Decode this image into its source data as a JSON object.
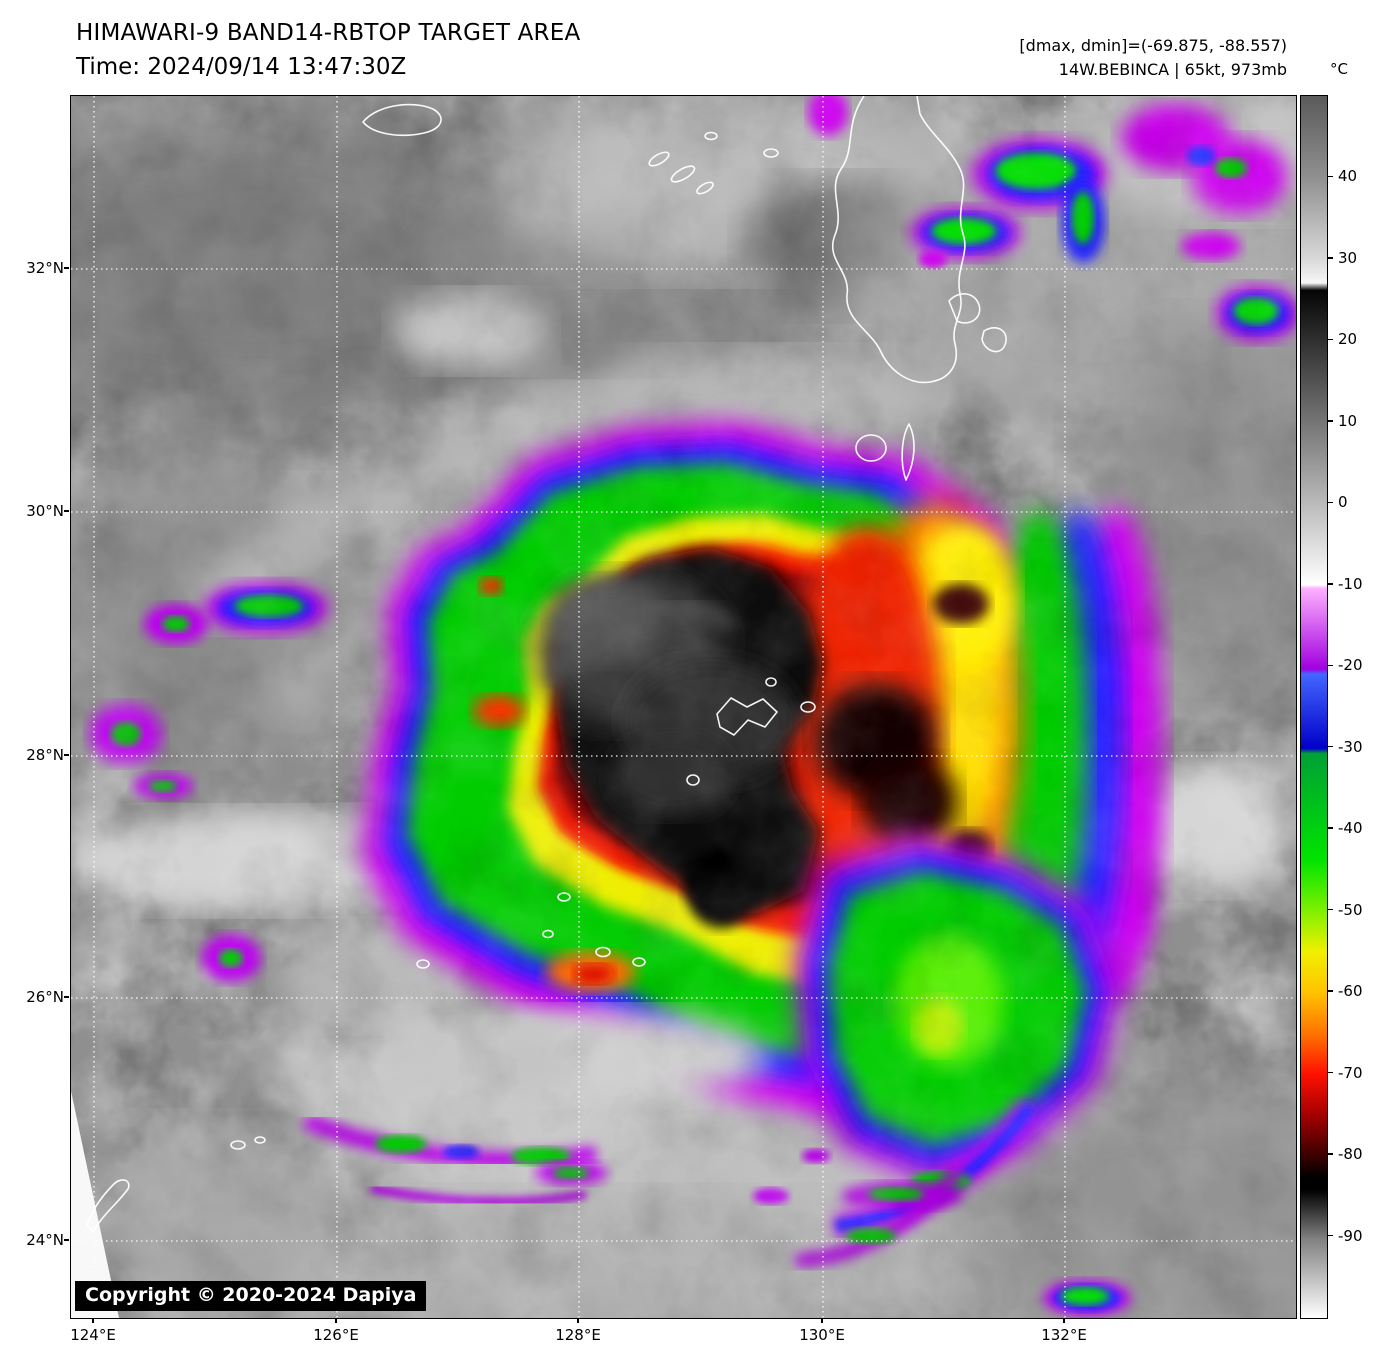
{
  "header": {
    "title": "HIMAWARI-9 BAND14-RBTOP TARGET AREA",
    "time_line": "Time: 2024/09/14 13:47:30Z"
  },
  "info": {
    "dmax_dmin": "[dmax, dmin]=(-69.875, -88.557)",
    "storm_line": "14W.BEBINCA | 65kt, 973mb"
  },
  "colorbar": {
    "unit": "°C",
    "ticks": [
      "40",
      "30",
      "20",
      "10",
      "0",
      "-10",
      "-20",
      "-30",
      "-40",
      "-50",
      "-60",
      "-70",
      "-80",
      "-90"
    ]
  },
  "axes": {
    "lat_labels": [
      "32°N",
      "30°N",
      "28°N",
      "26°N",
      "24°N"
    ],
    "lon_labels": [
      "124°E",
      "126°E",
      "128°E",
      "130°E",
      "132°E"
    ]
  },
  "watermark": {
    "copyright": "Copyright © 2020-2024 Dapiya"
  },
  "palette": {
    "warm_gray": "#8f8f8f",
    "magenta_fringe": "#cc00ee",
    "blue_band": "#2222ff",
    "green_band": "#00cc00",
    "yellow_band": "#f0f000",
    "orange_band": "#ff7700",
    "red_band": "#ff1200",
    "cold_core": "#000000"
  }
}
